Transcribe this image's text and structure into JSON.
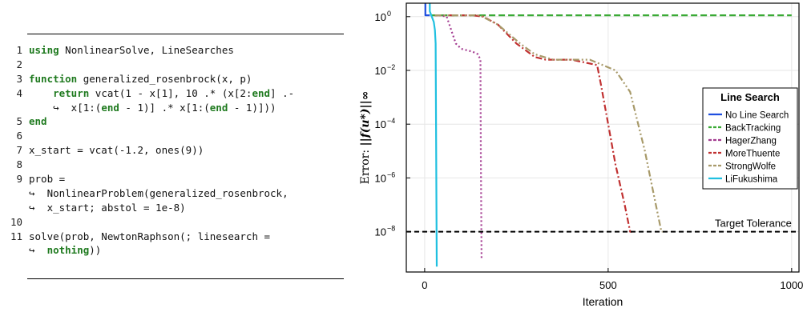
{
  "code": {
    "lines": [
      {
        "n": "1",
        "tokens": [
          {
            "t": "using",
            "c": "kw"
          },
          {
            "t": " NonlinearSolve, LineSearches"
          }
        ]
      },
      {
        "n": "2",
        "tokens": []
      },
      {
        "n": "3",
        "tokens": [
          {
            "t": "function",
            "c": "kw"
          },
          {
            "t": " generalized_rosenbrock(x, p)"
          }
        ]
      },
      {
        "n": "4",
        "tokens": [
          {
            "t": "    "
          },
          {
            "t": "return",
            "c": "kw"
          },
          {
            "t": " vcat(1 - x[1], 10 .* (x[2:"
          },
          {
            "t": "end",
            "c": "kw"
          },
          {
            "t": "] .-"
          }
        ]
      },
      {
        "n": "",
        "tokens": [
          {
            "t": "    ↪  x[1:("
          },
          {
            "t": "end",
            "c": "kw"
          },
          {
            "t": " - 1)] .* x[1:("
          },
          {
            "t": "end",
            "c": "kw"
          },
          {
            "t": " - 1)]))"
          }
        ]
      },
      {
        "n": "5",
        "tokens": [
          {
            "t": "end",
            "c": "kw"
          }
        ]
      },
      {
        "n": "6",
        "tokens": []
      },
      {
        "n": "7",
        "tokens": [
          {
            "t": "x_start = vcat(-1.2, ones(9))"
          }
        ]
      },
      {
        "n": "8",
        "tokens": []
      },
      {
        "n": "9",
        "tokens": [
          {
            "t": "prob ="
          }
        ]
      },
      {
        "n": "",
        "tokens": [
          {
            "t": "↪  NonlinearProblem(generalized_rosenbrock,"
          }
        ]
      },
      {
        "n": "",
        "tokens": [
          {
            "t": "↪  x_start; abstol = 1e-8)"
          }
        ]
      },
      {
        "n": "10",
        "tokens": []
      },
      {
        "n": "11",
        "tokens": [
          {
            "t": "solve(prob, NewtonRaphson(; linesearch ="
          }
        ]
      },
      {
        "n": "",
        "tokens": [
          {
            "t": "↪  "
          },
          {
            "t": "nothing",
            "c": "kw"
          },
          {
            "t": "))"
          }
        ]
      }
    ]
  },
  "chart_data": {
    "type": "line",
    "xlabel": "Iteration",
    "ylabel_prefix": "Error: ",
    "ylabel_expr": "||f(u*)||∞",
    "xlim": [
      -50,
      1020
    ],
    "ylim_log10": [
      -9.5,
      0.5
    ],
    "x_ticks": [
      {
        "v": 0,
        "label": "0"
      },
      {
        "v": 500,
        "label": "500"
      },
      {
        "v": 1000,
        "label": "1000"
      }
    ],
    "y_ticks": [
      {
        "v": 0,
        "label": "10",
        "exp": "0"
      },
      {
        "v": -2,
        "label": "10",
        "exp": "−2"
      },
      {
        "v": -4,
        "label": "10",
        "exp": "−4"
      },
      {
        "v": -6,
        "label": "10",
        "exp": "−6"
      },
      {
        "v": -8,
        "label": "10",
        "exp": "−8"
      }
    ],
    "grid": true,
    "legend_title": "Line Search",
    "legend_position": "right",
    "target": {
      "label": "Target Tolerance",
      "value_log10": -8
    },
    "series": [
      {
        "name": "No Line Search",
        "color": "#1f4fe0",
        "dash": "none",
        "points": [
          [
            0,
            0.5
          ],
          [
            0,
            0.55
          ],
          [
            2,
            0.55
          ],
          [
            2,
            0.05
          ],
          [
            10,
            0.05
          ],
          [
            14,
            0.05
          ]
        ]
      },
      {
        "name": "BackTracking",
        "color": "#3aaa35",
        "dash": "8,4",
        "points": [
          [
            18,
            0.05
          ],
          [
            100,
            0.05
          ],
          [
            300,
            0.05
          ],
          [
            600,
            0.05
          ],
          [
            1000,
            0.05
          ]
        ]
      },
      {
        "name": "HagerZhang",
        "color": "#a33a90",
        "dash": "2,3",
        "points": [
          [
            28,
            0.05
          ],
          [
            40,
            0.05
          ],
          [
            60,
            0.0
          ],
          [
            75,
            -0.6
          ],
          [
            85,
            -1.0
          ],
          [
            100,
            -1.2
          ],
          [
            130,
            -1.3
          ],
          [
            145,
            -1.4
          ],
          [
            152,
            -1.6
          ],
          [
            153,
            -5.0
          ],
          [
            155,
            -9.0
          ],
          [
            157,
            -9.0
          ]
        ]
      },
      {
        "name": "MoreThuente",
        "color": "#c03030",
        "dash": "8,3,2,3",
        "points": [
          [
            28,
            0.05
          ],
          [
            130,
            0.05
          ],
          [
            160,
            0.0
          ],
          [
            200,
            -0.3
          ],
          [
            250,
            -1.0
          ],
          [
            300,
            -1.5
          ],
          [
            330,
            -1.6
          ],
          [
            400,
            -1.6
          ],
          [
            470,
            -1.8
          ],
          [
            480,
            -2.5
          ],
          [
            500,
            -4.0
          ],
          [
            520,
            -5.5
          ],
          [
            545,
            -7.0
          ],
          [
            560,
            -8.0
          ],
          [
            565,
            -8.0
          ]
        ]
      },
      {
        "name": "StrongWolfe",
        "color": "#a89a6a",
        "dash": "8,3,2,3,2,3",
        "points": [
          [
            28,
            0.05
          ],
          [
            150,
            0.05
          ],
          [
            200,
            -0.3
          ],
          [
            260,
            -1.0
          ],
          [
            300,
            -1.4
          ],
          [
            350,
            -1.6
          ],
          [
            450,
            -1.6
          ],
          [
            520,
            -2.0
          ],
          [
            560,
            -2.8
          ],
          [
            600,
            -5.0
          ],
          [
            630,
            -7.0
          ],
          [
            645,
            -8.0
          ],
          [
            648,
            -8.0
          ]
        ]
      },
      {
        "name": "LiFukushima",
        "color": "#20c0e0",
        "dash": "none",
        "points": [
          [
            8,
            0.55
          ],
          [
            14,
            0.55
          ],
          [
            14,
            0.2
          ],
          [
            25,
            -0.2
          ],
          [
            28,
            -0.5
          ],
          [
            30,
            -1.0
          ],
          [
            31,
            -4.0
          ],
          [
            32,
            -7.0
          ],
          [
            33,
            -9.3
          ]
        ]
      }
    ]
  }
}
